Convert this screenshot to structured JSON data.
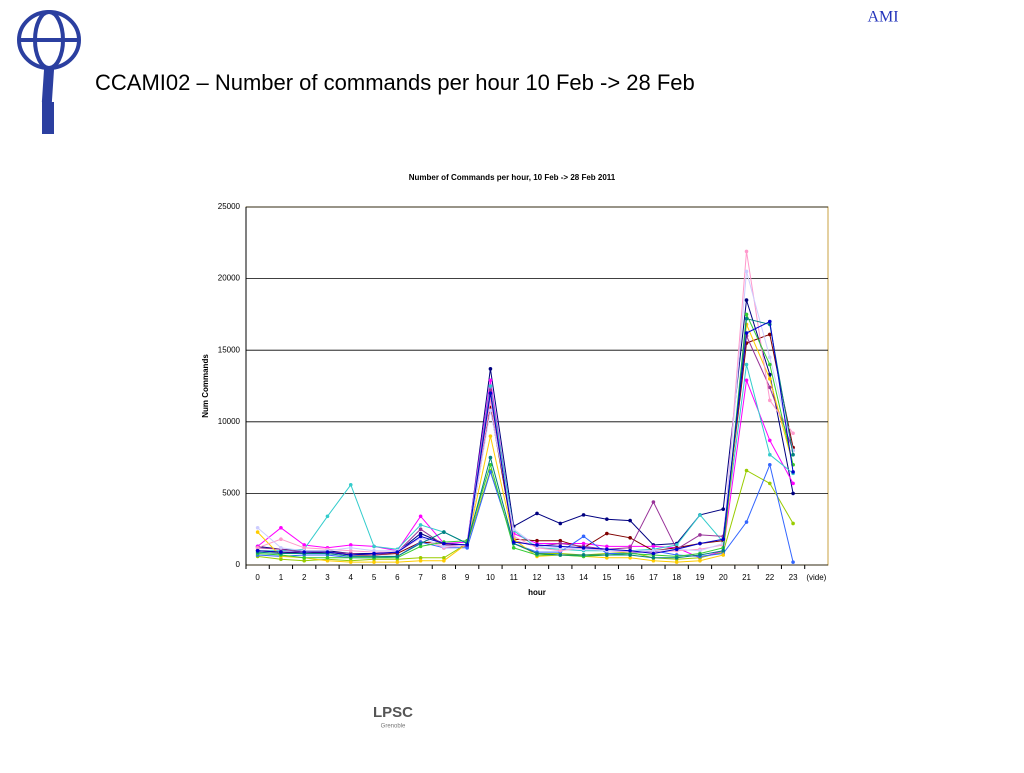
{
  "slide_title": "CCAMI02 – Number of commands per hour 10 Feb -> 28 Feb",
  "corner_label": "AMI",
  "footer_logo": {
    "name": "LPSC",
    "city": "Grenoble"
  },
  "chart_data": {
    "type": "line",
    "title": "Number of Commands per hour, 10 Feb -> 28 Feb 2011",
    "x_label": "hour",
    "y_label": "Num Commands",
    "categories": [
      "0",
      "1",
      "2",
      "3",
      "4",
      "5",
      "6",
      "7",
      "8",
      "9",
      "10",
      "11",
      "12",
      "13",
      "14",
      "15",
      "16",
      "17",
      "18",
      "19",
      "20",
      "21",
      "22",
      "23",
      "(vide)"
    ],
    "ylim": [
      0,
      25000
    ],
    "yticks": [
      0,
      5000,
      10000,
      15000,
      20000,
      25000
    ],
    "grid": true,
    "series": [
      {
        "color": "#000080",
        "values": [
          1300,
          1100,
          1000,
          1000,
          800,
          800,
          900,
          2200,
          1500,
          1400,
          13700,
          2700,
          3600,
          2900,
          3500,
          3200,
          3100,
          1400,
          1500,
          3500,
          3900,
          18500,
          13300,
          5000,
          null
        ]
      },
      {
        "color": "#ff00ff",
        "values": [
          1300,
          2600,
          1400,
          1200,
          1400,
          1300,
          1000,
          3400,
          1500,
          1600,
          12900,
          2200,
          1500,
          1500,
          1500,
          1300,
          1300,
          1300,
          1200,
          500,
          1000,
          12900,
          8700,
          5700,
          null
        ]
      },
      {
        "color": "#33cccc",
        "values": [
          1000,
          1000,
          1100,
          3400,
          5600,
          1300,
          1100,
          2800,
          2300,
          1500,
          12500,
          2400,
          1200,
          1100,
          1000,
          1000,
          1000,
          1100,
          1400,
          3500,
          1600,
          14000,
          7700,
          6400,
          null
        ]
      },
      {
        "color": "#99cc00",
        "values": [
          600,
          400,
          300,
          400,
          300,
          400,
          400,
          500,
          500,
          1500,
          6600,
          1500,
          800,
          800,
          700,
          800,
          900,
          500,
          400,
          500,
          900,
          6600,
          5700,
          2900,
          null
        ]
      },
      {
        "color": "#800000",
        "values": [
          1000,
          900,
          800,
          900,
          700,
          700,
          800,
          1600,
          1500,
          1300,
          11000,
          1800,
          1700,
          1700,
          1200,
          2200,
          1900,
          1000,
          1200,
          1500,
          1700,
          15500,
          16100,
          8200,
          null
        ]
      },
      {
        "color": "#993399",
        "values": [
          1200,
          1100,
          900,
          900,
          800,
          700,
          900,
          2500,
          1400,
          1300,
          12200,
          1700,
          1300,
          1500,
          1300,
          1100,
          1200,
          4400,
          1100,
          2100,
          2000,
          16000,
          12400,
          8000,
          null
        ]
      },
      {
        "color": "#3366ff",
        "values": [
          700,
          600,
          700,
          700,
          500,
          500,
          600,
          1600,
          1200,
          1200,
          6500,
          1500,
          900,
          900,
          2000,
          800,
          800,
          1000,
          700,
          600,
          800,
          3000,
          7000,
          200,
          null
        ]
      },
      {
        "color": "#ffcc00",
        "values": [
          2300,
          600,
          500,
          300,
          200,
          200,
          200,
          300,
          300,
          1500,
          9000,
          1800,
          600,
          700,
          600,
          500,
          500,
          300,
          200,
          300,
          700,
          16800,
          13000,
          7000,
          null
        ]
      },
      {
        "color": "#ff99cc",
        "values": [
          1200,
          1800,
          1200,
          1100,
          1000,
          900,
          900,
          1900,
          1200,
          1400,
          11500,
          2000,
          1200,
          1000,
          1200,
          1000,
          900,
          900,
          1000,
          1100,
          1400,
          21900,
          11500,
          9200,
          null
        ]
      },
      {
        "color": "#ccccff",
        "values": [
          2600,
          1200,
          1000,
          1000,
          1200,
          1000,
          1000,
          1900,
          1300,
          1400,
          10800,
          2500,
          1300,
          1200,
          1100,
          1000,
          1000,
          1000,
          1100,
          1000,
          1500,
          20500,
          14500,
          8000,
          null
        ]
      },
      {
        "color": "#33cc33",
        "values": [
          800,
          700,
          500,
          500,
          500,
          500,
          500,
          1300,
          1600,
          1700,
          7000,
          1200,
          700,
          700,
          600,
          700,
          800,
          700,
          600,
          800,
          1200,
          17500,
          14000,
          7000,
          null
        ]
      },
      {
        "color": "#008080",
        "values": [
          900,
          800,
          800,
          800,
          600,
          600,
          600,
          1500,
          2300,
          1500,
          7500,
          1500,
          800,
          700,
          700,
          700,
          700,
          500,
          500,
          700,
          1000,
          17200,
          16800,
          7700,
          null
        ]
      },
      {
        "color": "#0000cc",
        "values": [
          1000,
          900,
          900,
          900,
          700,
          800,
          900,
          2000,
          1500,
          1400,
          12000,
          1600,
          1400,
          1300,
          1200,
          1100,
          1000,
          800,
          1100,
          1500,
          1800,
          16200,
          17000,
          6500,
          null
        ]
      }
    ]
  }
}
